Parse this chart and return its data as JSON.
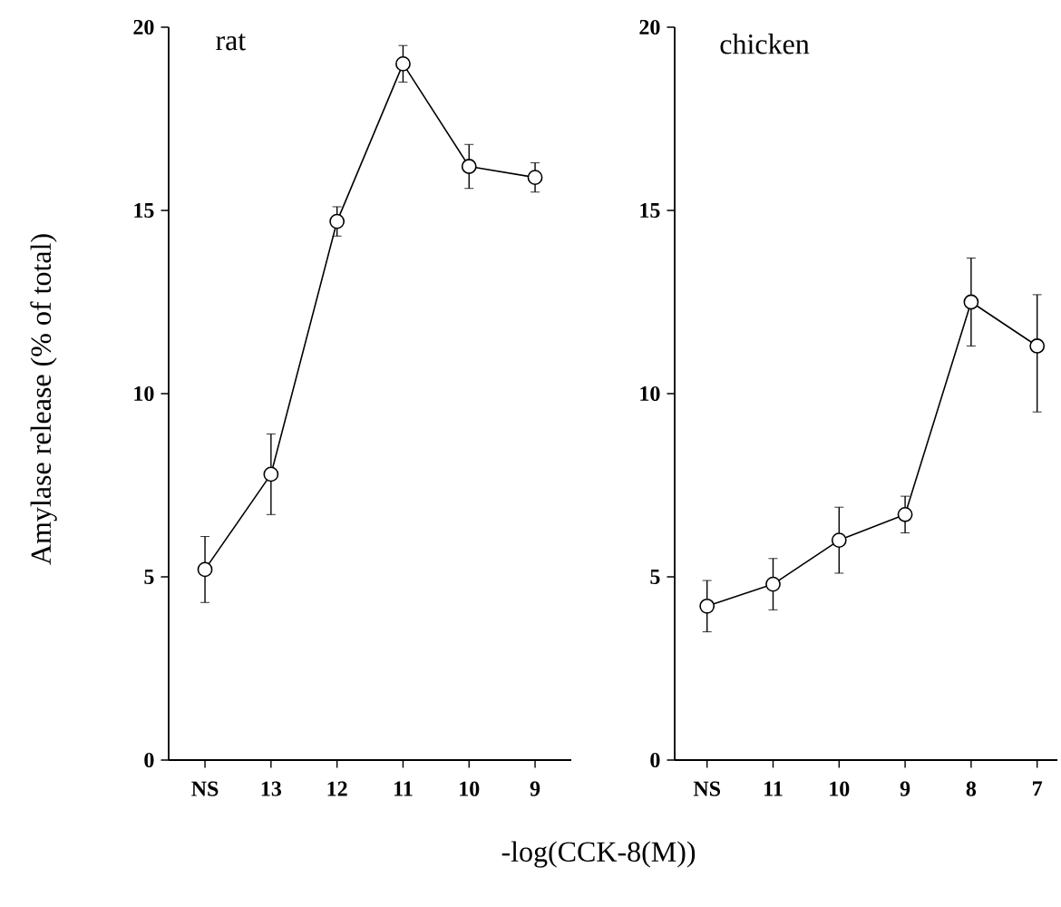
{
  "chart_data": [
    {
      "type": "line",
      "title": "rat",
      "ylabel": "Amylase release (% of total)",
      "xlabel": "-log(CCK-8(M))",
      "categories": [
        "NS",
        "13",
        "12",
        "11",
        "10",
        "9"
      ],
      "ylim": [
        0,
        20
      ],
      "yticks": [
        0,
        5,
        10,
        15,
        20
      ],
      "marker": "circle",
      "color": "#000000",
      "values": [
        5.2,
        7.8,
        14.7,
        19.0,
        16.2,
        15.9
      ],
      "errors": [
        0.9,
        1.1,
        0.4,
        0.5,
        0.6,
        0.4
      ]
    },
    {
      "type": "line",
      "title": "chicken",
      "categories": [
        "NS",
        "11",
        "10",
        "9",
        "8",
        "7"
      ],
      "ylim": [
        0,
        20
      ],
      "yticks": [
        0,
        5,
        10,
        15,
        20
      ],
      "marker": "circle",
      "color": "#000000",
      "values": [
        4.2,
        4.8,
        6.0,
        6.7,
        12.5,
        11.3
      ],
      "errors": [
        0.7,
        0.7,
        0.9,
        0.5,
        1.2,
        [
          9.5,
          12.7
        ]
      ]
    }
  ]
}
